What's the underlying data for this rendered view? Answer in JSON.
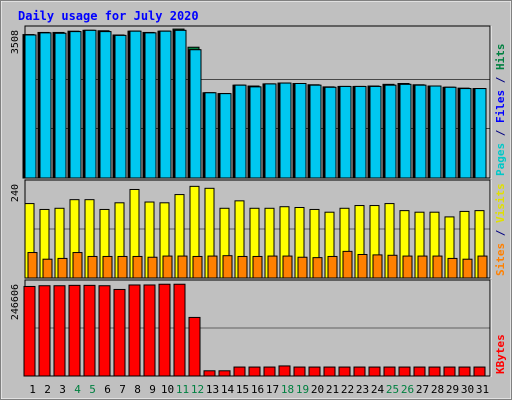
{
  "chart_data": {
    "title": "Daily usage for July 2020",
    "type": "bar",
    "categories": [
      "1",
      "2",
      "3",
      "4",
      "5",
      "6",
      "7",
      "8",
      "9",
      "10",
      "11",
      "12",
      "13",
      "14",
      "15",
      "16",
      "17",
      "18",
      "19",
      "20",
      "21",
      "22",
      "23",
      "24",
      "25",
      "26",
      "27",
      "28",
      "29",
      "30",
      "31"
    ],
    "weekend_days": [
      "4",
      "5",
      "11",
      "12",
      "18",
      "19",
      "25",
      "26"
    ],
    "panels": [
      {
        "name": "hits_files_pages",
        "max_label": "3508",
        "ymax": 3508,
        "axis_label_parts": [
          {
            "text": "Pages",
            "color": "#00c8c8"
          },
          {
            "text": " / ",
            "color": "#000080"
          },
          {
            "text": "Files",
            "color": "#0000ff"
          },
          {
            "text": " / ",
            "color": "#000080"
          },
          {
            "text": "Hits",
            "color": "#008040"
          }
        ],
        "series": [
          {
            "name": "Hits",
            "color": "#008040",
            "values": [
              3400,
              3450,
              3450,
              3480,
              3500,
              3490,
              3390,
              3480,
              3450,
              3480,
              3530,
              3100,
              2020,
              2000,
              2200,
              2180,
              2230,
              2250,
              2240,
              2210,
              2160,
              2170,
              2170,
              2180,
              2220,
              2240,
              2210,
              2180,
              2150,
              2130,
              2120
            ]
          },
          {
            "name": "Files",
            "color": "#0000ff",
            "values": [
              3390,
              3440,
              3430,
              3470,
              3500,
              3470,
              3380,
              3480,
              3440,
              3480,
              3500,
              3040,
              2020,
              2000,
              2200,
              2160,
              2230,
              2250,
              2240,
              2200,
              2150,
              2170,
              2170,
              2170,
              2200,
              2220,
              2200,
              2180,
              2150,
              2120,
              2120
            ]
          },
          {
            "name": "Pages",
            "color": "#00c8f0",
            "values": [
              3390,
              3440,
              3430,
              3470,
              3500,
              3470,
              3380,
              3480,
              3440,
              3480,
              3500,
              3040,
              2020,
              2000,
              2200,
              2160,
              2230,
              2250,
              2240,
              2200,
              2150,
              2170,
              2170,
              2170,
              2200,
              2220,
              2200,
              2180,
              2150,
              2120,
              2120
            ]
          }
        ]
      },
      {
        "name": "visits_sites",
        "max_label": "240",
        "ymax": 240,
        "axis_label_parts": [
          {
            "text": "Sites",
            "color": "#ff8000"
          },
          {
            "text": " / ",
            "color": "#000080"
          },
          {
            "text": "Visits",
            "color": "#e0e000"
          }
        ],
        "series": [
          {
            "name": "Visits",
            "color": "#ffff00",
            "values": [
              190,
              175,
              178,
              200,
              200,
              175,
              192,
              226,
              194,
              192,
              213,
              234,
              229,
              178,
              197,
              178,
              178,
              182,
              180,
              175,
              168,
              178,
              185,
              185,
              190,
              172,
              168,
              168,
              156,
              170,
              172
            ]
          },
          {
            "name": "Sites",
            "color": "#ff8000",
            "values": [
              65,
              48,
              50,
              65,
              55,
              55,
              55,
              55,
              53,
              56,
              56,
              55,
              56,
              57,
              55,
              55,
              56,
              56,
              53,
              52,
              55,
              68,
              60,
              59,
              58,
              56,
              56,
              56,
              50,
              48,
              56
            ]
          }
        ]
      },
      {
        "name": "kbytes",
        "max_label": "246606",
        "ymax": 246606,
        "axis_label_parts": [
          {
            "text": "KBytes",
            "color": "#ff0000"
          }
        ],
        "series": [
          {
            "name": "KBytes",
            "color": "#ff0000",
            "values": [
              240000,
              242000,
              242000,
              243000,
              243000,
              242000,
              232000,
              244000,
              244000,
              246000,
              246000,
              157000,
              14000,
              14000,
              24000,
              24000,
              24000,
              27000,
              24000,
              24000,
              24000,
              24000,
              24000,
              24000,
              24000,
              24000,
              24000,
              24000,
              24000,
              24000,
              24000
            ]
          }
        ]
      }
    ]
  },
  "colors": {
    "page_bg": "#c0c0c0",
    "plot_bg": "#c0c0c0",
    "frame_dark": "#000000",
    "grid": "#000000",
    "title": "#0000ff",
    "weekday_label": "#000000",
    "weekend_label": "#008040"
  }
}
